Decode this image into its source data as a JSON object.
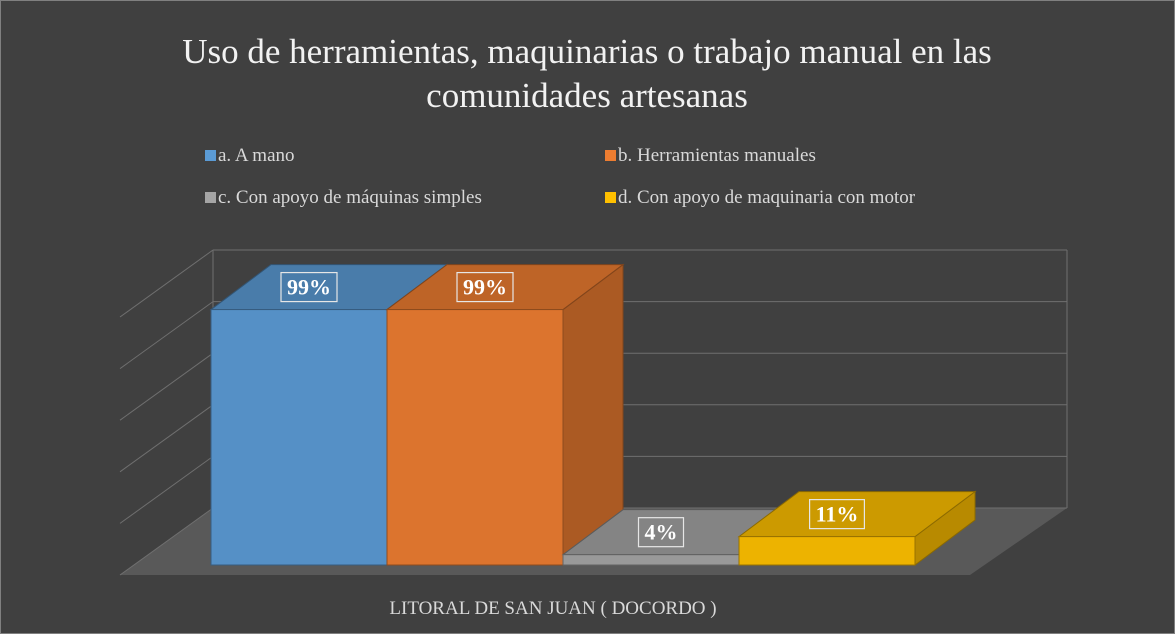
{
  "chart_data": {
    "type": "bar",
    "title": "Uso de herramientas, maquinarias o trabajo manual en las comunidades artesanas",
    "categories": [
      "LITORAL DE SAN JUAN ( DOCORDO )"
    ],
    "series": [
      {
        "name": "a. A mano",
        "color": "#5b9bd5",
        "values": [
          99
        ],
        "value_labels": [
          "99%"
        ]
      },
      {
        "name": "b. Herramientas manuales",
        "color": "#ed7d31",
        "values": [
          99
        ],
        "value_labels": [
          "99%"
        ]
      },
      {
        "name": "c. Con apoyo de máquinas simples",
        "color": "#a5a5a5",
        "values": [
          4
        ],
        "value_labels": [
          "4%"
        ]
      },
      {
        "name": "d. Con apoyo de maquinaria con motor",
        "color": "#ffc000",
        "values": [
          11
        ],
        "value_labels": [
          "11%"
        ]
      }
    ],
    "ylim": [
      0,
      100
    ],
    "yticks": [
      0,
      20,
      40,
      60,
      80,
      100
    ],
    "grid": true,
    "legend": "top"
  }
}
